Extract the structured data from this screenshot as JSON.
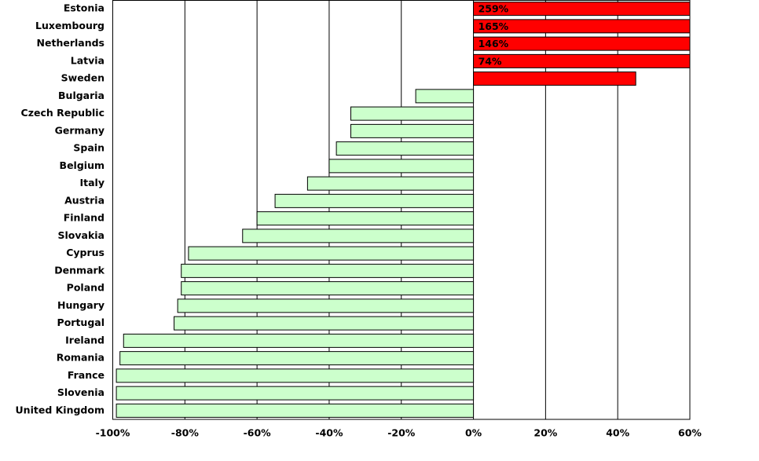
{
  "chart_data": {
    "type": "hbar",
    "categories": [
      "Estonia",
      "Luxembourg",
      "Netherlands",
      "Latvia",
      "Sweden",
      "Bulgaria",
      "Czech Republic",
      "Germany",
      "Spain",
      "Belgium",
      "Italy",
      "Austria",
      "Finland",
      "Slovakia",
      "Cyprus",
      "Denmark",
      "Poland",
      "Hungary",
      "Portugal",
      "Ireland",
      "Romania",
      "France",
      "Slovenia",
      "United Kingdom"
    ],
    "values": [
      259,
      165,
      146,
      74,
      45,
      -16,
      -34,
      -34,
      -38,
      -40,
      -46,
      -55,
      -60,
      -64,
      -79,
      -81,
      -81,
      -82,
      -83,
      -97,
      -98,
      -99,
      -99,
      -99
    ],
    "value_labels": [
      "259%",
      "165%",
      "146%",
      "74%",
      null,
      null,
      null,
      null,
      null,
      null,
      null,
      null,
      null,
      null,
      null,
      null,
      null,
      null,
      null,
      null,
      null,
      null,
      null,
      null
    ],
    "positive_color": "#ff0000",
    "negative_color": "#ccffcc",
    "xlim": [
      -100,
      60
    ],
    "xticks": [
      {
        "value": -100,
        "label": "-100%"
      },
      {
        "value": -80,
        "label": "-80%"
      },
      {
        "value": -60,
        "label": "-60%"
      },
      {
        "value": -40,
        "label": "-40%"
      },
      {
        "value": -20,
        "label": "-20%"
      },
      {
        "value": 0,
        "label": "0%"
      },
      {
        "value": 20,
        "label": "20%"
      },
      {
        "value": 40,
        "label": "40%"
      },
      {
        "value": 60,
        "label": "60%"
      }
    ],
    "grid": true
  }
}
